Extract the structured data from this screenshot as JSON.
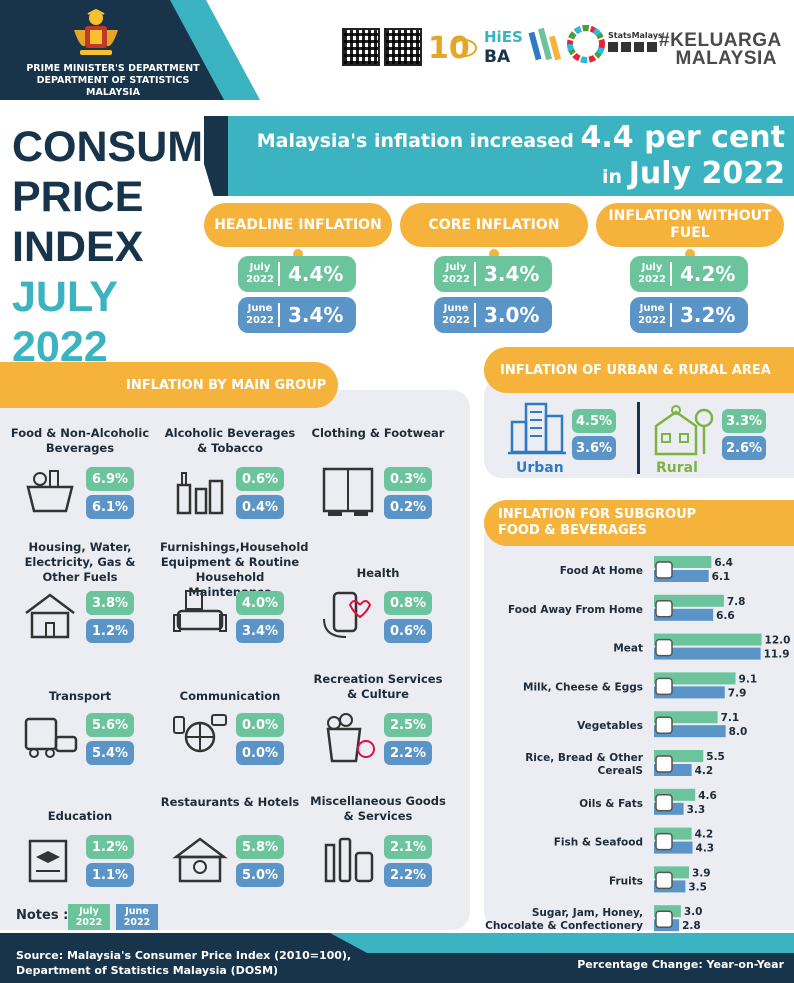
{
  "header": {
    "department": "PRIME MINISTER'S DEPARTMENT DEPARTMENT OF STATISTICS MALAYSIA",
    "campaign": "#KELUARGA MALAYSIA",
    "colors": {
      "navy": "#17344a",
      "teal": "#3bb3c0",
      "orange": "#f6b33c",
      "green": "#6cc49c",
      "blue": "#5b95c8"
    }
  },
  "title": {
    "line1": "CONSUMER",
    "line2": "PRICE",
    "line3": "INDEX",
    "line4": "JULY 2022"
  },
  "banner": {
    "pre": "Malaysia's inflation increased",
    "value": "4.4 per cent",
    "in": "in",
    "month": "July 2022"
  },
  "headline": [
    {
      "label": "HEADLINE INFLATION",
      "july_label": "July 2022",
      "july": "4.4%",
      "june_label": "June 2022",
      "june": "3.4%"
    },
    {
      "label": "CORE INFLATION",
      "july_label": "July 2022",
      "july": "3.4%",
      "june_label": "June 2022",
      "june": "3.0%"
    },
    {
      "label": "INFLATION WITHOUT FUEL",
      "july_label": "July 2022",
      "july": "4.2%",
      "june_label": "June 2022",
      "june": "3.2%"
    }
  ],
  "main_group": {
    "title": "INFLATION BY MAIN GROUP",
    "items": [
      {
        "label": "Food & Non-Alcoholic Beverages",
        "icon": "grocery-basket-icon",
        "july": "6.9%",
        "june": "6.1%"
      },
      {
        "label": "Alcoholic Beverages & Tobacco",
        "icon": "bottles-icon",
        "july": "0.6%",
        "june": "0.4%"
      },
      {
        "label": "Clothing & Footwear",
        "icon": "wardrobe-icon",
        "july": "0.3%",
        "june": "0.2%"
      },
      {
        "label": "Housing, Water, Electricity, Gas & Other Fuels",
        "icon": "house-icon",
        "july": "3.8%",
        "june": "1.2%"
      },
      {
        "label": "Furnishings,Household Equipment & Routine Household Maintenance",
        "icon": "sofa-icon",
        "july": "4.0%",
        "june": "3.4%"
      },
      {
        "label": "Health",
        "icon": "health-phone-icon",
        "july": "0.8%",
        "june": "0.6%"
      },
      {
        "label": "Transport",
        "icon": "vehicles-icon",
        "july": "5.6%",
        "june": "5.4%"
      },
      {
        "label": "Communication",
        "icon": "communication-icon",
        "july": "0.0%",
        "june": "0.0%"
      },
      {
        "label": "Recreation Services & Culture",
        "icon": "popcorn-icon",
        "july": "2.5%",
        "june": "2.2%"
      },
      {
        "label": "Education",
        "icon": "graduation-book-icon",
        "july": "1.2%",
        "june": "1.1%"
      },
      {
        "label": "Restaurants & Hotels",
        "icon": "restaurant-icon",
        "july": "5.8%",
        "june": "5.0%"
      },
      {
        "label": "Miscellaneous Goods & Services",
        "icon": "toiletries-icon",
        "july": "2.1%",
        "june": "2.2%"
      }
    ]
  },
  "urban_rural": {
    "title": "INFLATION OF URBAN & RURAL AREA",
    "urban": {
      "label": "Urban",
      "icon": "city-buildings-icon",
      "july": "4.5%",
      "june": "3.6%"
    },
    "rural": {
      "label": "Rural",
      "icon": "rural-house-icon",
      "july": "3.3%",
      "june": "2.6%"
    }
  },
  "subgroup_title_1": "INFLATION FOR SUBGROUP",
  "subgroup_title_2": "FOOD & BEVERAGES",
  "chart_data": {
    "type": "bar",
    "orientation": "horizontal",
    "categories": [
      "Food At Home",
      "Food Away From Home",
      "Meat",
      "Milk, Cheese & Eggs",
      "Vegetables",
      "Rice, Bread & Other CerealS",
      "Oils & Fats",
      "Fish & Seafood",
      "Fruits",
      "Sugar, Jam, Honey, Chocolate & Confectionery"
    ],
    "series": [
      {
        "name": "July 2022",
        "color": "#6cc49c",
        "values": [
          6.4,
          7.8,
          12.0,
          9.1,
          7.1,
          5.5,
          4.6,
          4.2,
          3.9,
          3.0
        ]
      },
      {
        "name": "June 2022",
        "color": "#5b95c8",
        "values": [
          6.1,
          6.6,
          11.9,
          7.9,
          8.0,
          4.2,
          3.3,
          4.3,
          3.5,
          2.8
        ]
      }
    ],
    "xlim": [
      0,
      12.5
    ],
    "legend": "bottom-left"
  },
  "notes": {
    "label": "Notes :",
    "july": "July 2022",
    "june": "June 2022"
  },
  "footer": {
    "source": "Source: Malaysia's Consumer Price Index (2010=100), Department of Statistics Malaysia (DOSM)",
    "pct": "Percentage Change: Year-on-Year"
  }
}
